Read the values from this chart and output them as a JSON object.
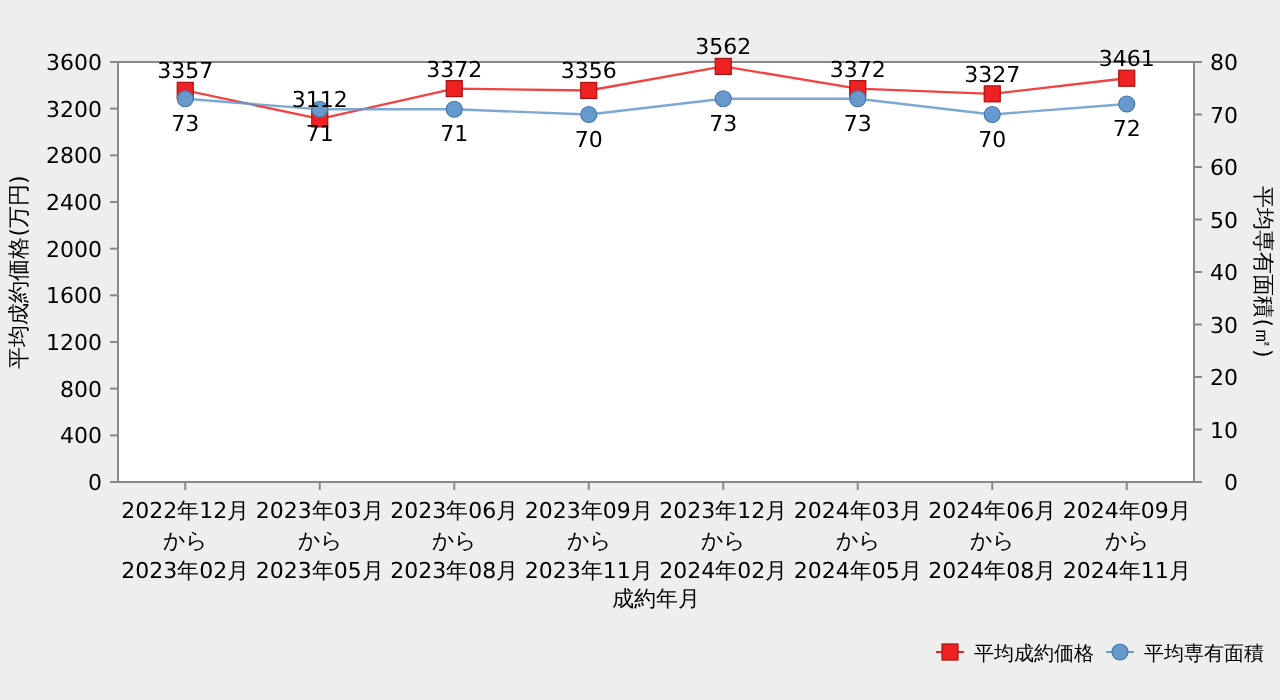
{
  "chart_data": {
    "type": "line",
    "xlabel": "成約年月",
    "ylabel": "平均成約価格(万円)",
    "y2label": "平均専有面積(㎡)",
    "categories": [
      "2022年12月から2023年02月",
      "2023年03月から2023年05月",
      "2023年06月から2023年08月",
      "2023年09月から2023年11月",
      "2023年12月から2024年02月",
      "2024年03月から2024年05月",
      "2024年06月から2024年08月",
      "2024年09月から2024年11月"
    ],
    "series": [
      {
        "name": "平均成約価格",
        "color": "#ee2222",
        "marker": "square",
        "values": [
          3357,
          3112,
          3372,
          3356,
          3562,
          3372,
          3327,
          3461
        ]
      },
      {
        "name": "平均専有面積",
        "color": "#6699cc",
        "marker": "circle",
        "axis": "y2",
        "values": [
          73,
          71,
          71,
          70,
          73,
          73,
          70,
          72
        ]
      }
    ],
    "ylim": [
      0,
      3600
    ],
    "yticks": [
      0,
      400,
      800,
      1200,
      1600,
      2000,
      2400,
      2800,
      3200,
      3600
    ],
    "y2lim": [
      0,
      80
    ],
    "y2ticks": [
      0,
      10,
      20,
      30,
      40,
      50,
      60,
      70,
      80
    ],
    "data_labels": true,
    "legend": "bottom right",
    "grid": false
  }
}
